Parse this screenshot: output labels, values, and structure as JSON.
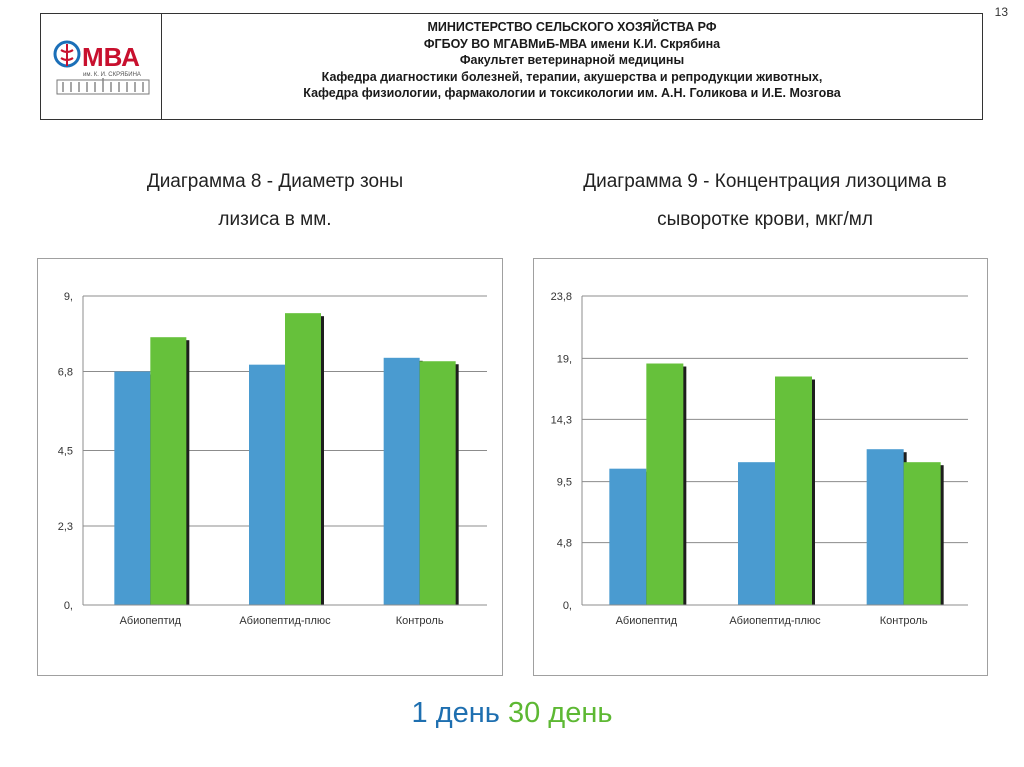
{
  "page_number": "13",
  "header": {
    "logo_text": "МВА",
    "logo_subtext": "им. К. И. СКРЯБИНА",
    "lines": [
      "МИНИСТЕРСТВО СЕЛЬСКОГО ХОЗЯЙСТВА РФ",
      "ФГБОУ ВО МГАВМиБ-МВА имени К.И. Скрябина",
      "Факультет ветеринарной медицины",
      "Кафедра диагностики болезней, терапии, акушерства и репродукции животных,",
      "Кафедра физиологии, фармакологии и токсикологии им. А.Н. Голикова и И.Е. Мозгова"
    ]
  },
  "colors": {
    "series_1": "#4a9bd0",
    "series_2": "#66c13b",
    "logo_blue": "#1b6fb8",
    "logo_red": "#c8102e"
  },
  "legend": {
    "series_1": "1 день",
    "series_2": "30 день"
  },
  "chart_data": [
    {
      "type": "bar",
      "title_line_1": "Диаграмма 8 - Диаметр зоны",
      "title_line_2": "лизиса в мм.",
      "categories": [
        "Абиопептид",
        "Абиопептид-плюс",
        "Контроль"
      ],
      "series": [
        {
          "name": "1 день",
          "values": [
            6.8,
            7.0,
            7.2
          ]
        },
        {
          "name": "30 день",
          "values": [
            7.8,
            8.5,
            7.1
          ]
        }
      ],
      "yticks": [
        0,
        2.3,
        4.5,
        6.8,
        9
      ],
      "ytick_labels": [
        "0,",
        "2,3",
        "4,5",
        "6,8",
        "9,"
      ],
      "ylim": [
        0,
        9
      ],
      "grid": true
    },
    {
      "type": "bar",
      "title_line_1": "Диаграмма 9 - Концентрация лизоцима в",
      "title_line_2": "сыворотке крови, мкг/мл",
      "categories": [
        "Абиопептид",
        "Абиопептид-плюс",
        "Контроль"
      ],
      "series": [
        {
          "name": "1 день",
          "values": [
            10.5,
            11.0,
            12.0
          ]
        },
        {
          "name": "30 день",
          "values": [
            18.6,
            17.6,
            11.0
          ]
        }
      ],
      "yticks": [
        0,
        4.8,
        9.5,
        14.3,
        19,
        23.8
      ],
      "ytick_labels": [
        "0,",
        "4,8",
        "9,5",
        "14,3",
        "19,",
        "23,8"
      ],
      "ylim": [
        0,
        23.8
      ],
      "grid": true
    }
  ]
}
